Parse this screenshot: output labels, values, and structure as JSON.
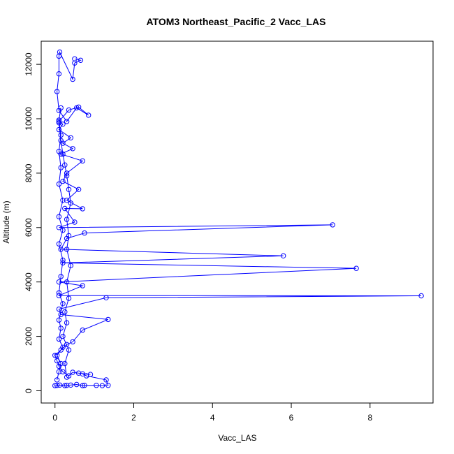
{
  "chart_data": {
    "type": "line",
    "title": "ATOM3 Northeast_Pacific_2 Vacc_LAS",
    "xlabel": "Vacc_LAS",
    "ylabel": "Altitude (m)",
    "xlim": [
      -0.35,
      9.6
    ],
    "ylim": [
      -450,
      12850
    ],
    "xticks": [
      0,
      2,
      4,
      6,
      8
    ],
    "yticks": [
      0,
      2000,
      4000,
      6000,
      8000,
      10000,
      12000
    ],
    "grid": false,
    "legend": "none",
    "marker": "open-circle",
    "color": "#0000ff",
    "series": [
      {
        "points": [
          [
            0.0,
            190
          ],
          [
            0.05,
            200
          ],
          [
            0.12,
            210
          ],
          [
            0.25,
            190
          ],
          [
            0.3,
            200
          ],
          [
            0.4,
            210
          ],
          [
            0.55,
            230
          ],
          [
            0.7,
            190
          ],
          [
            0.75,
            200
          ],
          [
            1.05,
            200
          ],
          [
            1.2,
            190
          ],
          [
            1.35,
            200
          ],
          [
            1.3,
            400
          ],
          [
            0.8,
            550
          ],
          [
            0.7,
            620
          ],
          [
            0.9,
            600
          ],
          [
            0.6,
            650
          ],
          [
            0.45,
            680
          ],
          [
            0.35,
            550
          ],
          [
            0.2,
            700
          ],
          [
            0.1,
            900
          ],
          [
            0.05,
            1100
          ],
          [
            0.0,
            1300
          ],
          [
            0.15,
            1500
          ],
          [
            0.3,
            1700
          ],
          [
            0.45,
            1800
          ],
          [
            0.7,
            2230
          ],
          [
            1.35,
            2620
          ],
          [
            0.15,
            2800
          ],
          [
            0.1,
            3000
          ],
          [
            1.3,
            3420
          ],
          [
            9.3,
            3490
          ],
          [
            0.1,
            3500
          ],
          [
            0.7,
            3860
          ],
          [
            0.1,
            4000
          ],
          [
            7.65,
            4500
          ],
          [
            0.2,
            4700
          ],
          [
            5.8,
            4960
          ],
          [
            0.15,
            5200
          ],
          [
            0.3,
            5600
          ],
          [
            0.75,
            5800
          ],
          [
            7.05,
            6100
          ],
          [
            0.1,
            6000
          ],
          [
            0.5,
            6200
          ],
          [
            0.25,
            6700
          ],
          [
            0.7,
            6690
          ],
          [
            0.3,
            7000
          ],
          [
            0.6,
            7400
          ],
          [
            0.2,
            7700
          ],
          [
            0.3,
            8000
          ],
          [
            0.7,
            8450
          ],
          [
            0.15,
            8700
          ],
          [
            0.45,
            8900
          ],
          [
            0.2,
            9100
          ],
          [
            0.4,
            9300
          ],
          [
            0.1,
            9600
          ],
          [
            0.2,
            9800
          ],
          [
            0.1,
            9900
          ],
          [
            0.35,
            10320
          ],
          [
            0.6,
            10430
          ],
          [
            0.85,
            10130
          ],
          [
            0.55,
            10400
          ],
          [
            0.3,
            9900
          ],
          [
            0.1,
            10300
          ],
          [
            0.05,
            11000
          ],
          [
            0.1,
            11650
          ],
          [
            0.1,
            12300
          ],
          [
            0.12,
            12450
          ],
          [
            0.45,
            11450
          ],
          [
            0.5,
            12050
          ],
          [
            0.65,
            12150
          ],
          [
            0.5,
            12200
          ]
        ]
      },
      {
        "points": [
          [
            0.05,
            400
          ],
          [
            0.1,
            700
          ],
          [
            0.15,
            1000
          ],
          [
            0.05,
            1300
          ],
          [
            0.2,
            1600
          ],
          [
            0.1,
            1900
          ],
          [
            0.15,
            2300
          ],
          [
            0.1,
            2600
          ],
          [
            0.2,
            3200
          ],
          [
            0.1,
            3600
          ],
          [
            0.15,
            4200
          ],
          [
            0.2,
            4800
          ],
          [
            0.1,
            5400
          ],
          [
            0.2,
            5900
          ],
          [
            0.1,
            6400
          ],
          [
            0.2,
            7000
          ],
          [
            0.1,
            7600
          ],
          [
            0.15,
            8200
          ],
          [
            0.1,
            8800
          ],
          [
            0.15,
            9400
          ],
          [
            0.1,
            9950
          ],
          [
            0.15,
            10400
          ]
        ]
      },
      {
        "points": [
          [
            0.3,
            500
          ],
          [
            0.25,
            1000
          ],
          [
            0.35,
            1500
          ],
          [
            0.2,
            2000
          ],
          [
            0.3,
            2500
          ],
          [
            0.25,
            2900
          ],
          [
            0.35,
            3400
          ],
          [
            0.3,
            4000
          ],
          [
            0.4,
            4600
          ],
          [
            0.3,
            5200
          ],
          [
            0.35,
            5700
          ],
          [
            0.3,
            6300
          ],
          [
            0.4,
            6900
          ],
          [
            0.35,
            7400
          ],
          [
            0.3,
            7900
          ],
          [
            0.25,
            8300
          ],
          [
            0.2,
            8700
          ],
          [
            0.15,
            9200
          ],
          [
            0.1,
            9850
          ]
        ]
      }
    ]
  }
}
